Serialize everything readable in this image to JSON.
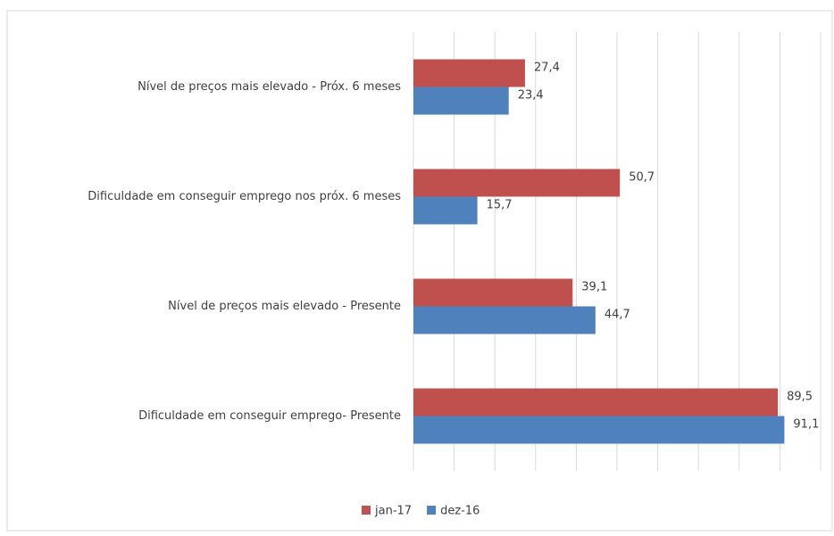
{
  "chart_data": {
    "type": "bar",
    "orientation": "horizontal",
    "categories": [
      "Nível de preços mais elevado - Próx. 6 meses",
      "Dificuldade em conseguir emprego nos próx. 6 meses",
      "Nível de preços mais elevado - Presente",
      "Dificuldade em conseguir emprego- Presente"
    ],
    "series": [
      {
        "name": "jan-17",
        "color": "#c0504d",
        "values": [
          27.4,
          50.7,
          39.1,
          89.5
        ],
        "value_labels": [
          "27,4",
          "50,7",
          "39,1",
          "89,5"
        ]
      },
      {
        "name": "dez-16",
        "color": "#4f81bd",
        "values": [
          23.4,
          15.7,
          44.7,
          91.1
        ],
        "value_labels": [
          "23,4",
          "15,7",
          "44,7",
          "91,1"
        ]
      }
    ],
    "xlim": [
      0,
      100
    ],
    "xticks": [
      0,
      10,
      20,
      30,
      40,
      50,
      60,
      70,
      80,
      90,
      100
    ],
    "grid": true,
    "legend": "bottom"
  }
}
